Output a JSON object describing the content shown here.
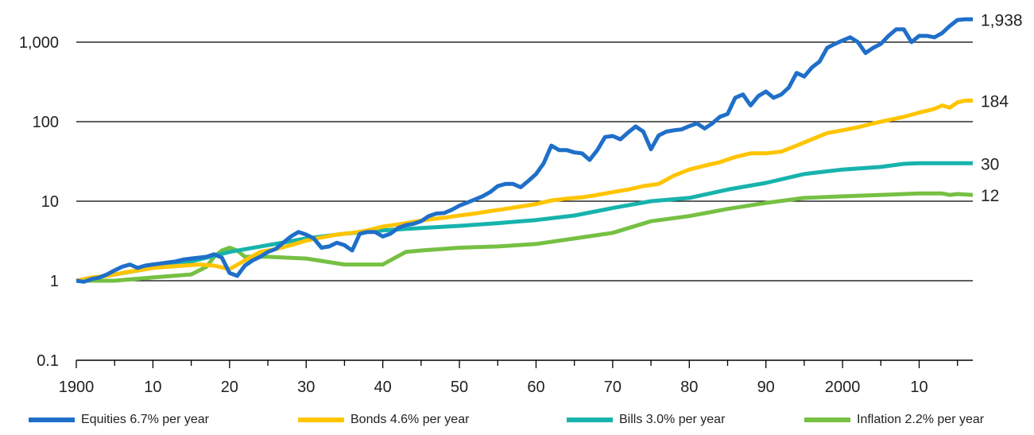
{
  "chart_data": {
    "type": "line",
    "y_scale": "log",
    "ylim": [
      0.1,
      2000
    ],
    "y_ticks": [
      0.1,
      1,
      10,
      100,
      1000
    ],
    "y_tick_labels": [
      "0.1",
      "1",
      "10",
      "100",
      "1,000"
    ],
    "xlim": [
      1900,
      2017
    ],
    "x_ticks": [
      1900,
      1910,
      1920,
      1930,
      1940,
      1950,
      1960,
      1970,
      1980,
      1990,
      2000,
      2010
    ],
    "x_tick_labels": [
      "1900",
      "10",
      "20",
      "30",
      "40",
      "50",
      "60",
      "70",
      "80",
      "90",
      "2000",
      "10"
    ],
    "grid": "horizontal",
    "legend_position": "bottom",
    "end_labels": [
      "1,938",
      "184",
      "30",
      "12"
    ],
    "series": [
      {
        "name": "Equities",
        "legend": "Equities  6.7% per year",
        "color": "#1f6fc9",
        "points": [
          [
            1900,
            1.0
          ],
          [
            1901,
            0.97
          ],
          [
            1902,
            1.05
          ],
          [
            1903,
            1.1
          ],
          [
            1904,
            1.2
          ],
          [
            1905,
            1.35
          ],
          [
            1906,
            1.5
          ],
          [
            1907,
            1.6
          ],
          [
            1908,
            1.45
          ],
          [
            1909,
            1.55
          ],
          [
            1910,
            1.6
          ],
          [
            1911,
            1.65
          ],
          [
            1912,
            1.7
          ],
          [
            1913,
            1.75
          ],
          [
            1914,
            1.85
          ],
          [
            1915,
            1.9
          ],
          [
            1916,
            1.95
          ],
          [
            1917,
            2.0
          ],
          [
            1918,
            2.15
          ],
          [
            1919,
            1.95
          ],
          [
            1920,
            1.25
          ],
          [
            1921,
            1.15
          ],
          [
            1922,
            1.55
          ],
          [
            1923,
            1.8
          ],
          [
            1924,
            2.0
          ],
          [
            1925,
            2.3
          ],
          [
            1926,
            2.5
          ],
          [
            1927,
            3.0
          ],
          [
            1928,
            3.6
          ],
          [
            1929,
            4.1
          ],
          [
            1930,
            3.8
          ],
          [
            1931,
            3.4
          ],
          [
            1932,
            2.6
          ],
          [
            1933,
            2.7
          ],
          [
            1934,
            3.0
          ],
          [
            1935,
            2.8
          ],
          [
            1936,
            2.4
          ],
          [
            1937,
            3.9
          ],
          [
            1938,
            4.1
          ],
          [
            1939,
            4.1
          ],
          [
            1940,
            3.6
          ],
          [
            1941,
            3.9
          ],
          [
            1942,
            4.6
          ],
          [
            1943,
            5.0
          ],
          [
            1944,
            5.2
          ],
          [
            1945,
            5.6
          ],
          [
            1946,
            6.5
          ],
          [
            1947,
            7.0
          ],
          [
            1948,
            7.1
          ],
          [
            1949,
            7.8
          ],
          [
            1950,
            8.8
          ],
          [
            1951,
            9.6
          ],
          [
            1952,
            10.5
          ],
          [
            1953,
            11.5
          ],
          [
            1954,
            13.0
          ],
          [
            1955,
            15.5
          ],
          [
            1956,
            16.5
          ],
          [
            1957,
            16.5
          ],
          [
            1958,
            15.0
          ],
          [
            1959,
            18.0
          ],
          [
            1960,
            22.0
          ],
          [
            1961,
            30.0
          ],
          [
            1962,
            50.0
          ],
          [
            1963,
            44.0
          ],
          [
            1964,
            44.0
          ],
          [
            1965,
            41.0
          ],
          [
            1966,
            40.0
          ],
          [
            1967,
            33.0
          ],
          [
            1968,
            44.0
          ],
          [
            1969,
            64.0
          ],
          [
            1970,
            66.0
          ],
          [
            1971,
            60.0
          ],
          [
            1972,
            73.0
          ],
          [
            1973,
            87.0
          ],
          [
            1974,
            75.0
          ],
          [
            1975,
            45.0
          ],
          [
            1976,
            67.0
          ],
          [
            1977,
            75.0
          ],
          [
            1978,
            78.0
          ],
          [
            1979,
            80.0
          ],
          [
            1980,
            88.0
          ],
          [
            1981,
            95.0
          ],
          [
            1982,
            82.0
          ],
          [
            1983,
            95.0
          ],
          [
            1984,
            115.0
          ],
          [
            1985,
            125.0
          ],
          [
            1986,
            200.0
          ],
          [
            1987,
            220.0
          ],
          [
            1988,
            160.0
          ],
          [
            1989,
            210.0
          ],
          [
            1990,
            240.0
          ],
          [
            1991,
            200.0
          ],
          [
            1992,
            220.0
          ],
          [
            1993,
            270.0
          ],
          [
            1994,
            410.0
          ],
          [
            1995,
            370.0
          ],
          [
            1996,
            480.0
          ],
          [
            1997,
            570.0
          ],
          [
            1998,
            850.0
          ],
          [
            1999,
            950.0
          ],
          [
            2000,
            1050.0
          ],
          [
            2001,
            1150.0
          ],
          [
            2002,
            1000.0
          ],
          [
            2003,
            730.0
          ],
          [
            2004,
            850.0
          ],
          [
            2005,
            950.0
          ],
          [
            2006,
            1200.0
          ],
          [
            2007,
            1450.0
          ],
          [
            2008,
            1450.0
          ],
          [
            2009,
            1000.0
          ],
          [
            2010,
            1200.0
          ],
          [
            2011,
            1200.0
          ],
          [
            2012,
            1150.0
          ],
          [
            2013,
            1300.0
          ],
          [
            2014,
            1600.0
          ],
          [
            2015,
            1900.0
          ],
          [
            2016,
            1938.0
          ],
          [
            2017,
            1938.0
          ]
        ]
      },
      {
        "name": "Bonds",
        "legend": "Bonds  4.6% per year",
        "color": "#ffc400",
        "points": [
          [
            1900,
            1.0
          ],
          [
            1902,
            1.1
          ],
          [
            1904,
            1.15
          ],
          [
            1906,
            1.25
          ],
          [
            1908,
            1.35
          ],
          [
            1910,
            1.45
          ],
          [
            1912,
            1.5
          ],
          [
            1914,
            1.55
          ],
          [
            1916,
            1.6
          ],
          [
            1918,
            1.55
          ],
          [
            1920,
            1.4
          ],
          [
            1922,
            1.8
          ],
          [
            1924,
            2.3
          ],
          [
            1926,
            2.5
          ],
          [
            1928,
            2.8
          ],
          [
            1930,
            3.2
          ],
          [
            1932,
            3.5
          ],
          [
            1934,
            3.8
          ],
          [
            1936,
            4.0
          ],
          [
            1938,
            4.3
          ],
          [
            1940,
            4.8
          ],
          [
            1942,
            5.1
          ],
          [
            1944,
            5.5
          ],
          [
            1946,
            5.9
          ],
          [
            1948,
            6.2
          ],
          [
            1950,
            6.6
          ],
          [
            1952,
            7.0
          ],
          [
            1954,
            7.5
          ],
          [
            1956,
            8.0
          ],
          [
            1958,
            8.6
          ],
          [
            1960,
            9.2
          ],
          [
            1962,
            10.2
          ],
          [
            1964,
            10.8
          ],
          [
            1966,
            11.2
          ],
          [
            1968,
            12.0
          ],
          [
            1970,
            13.0
          ],
          [
            1972,
            14.0
          ],
          [
            1974,
            15.5
          ],
          [
            1976,
            16.5
          ],
          [
            1978,
            21.0
          ],
          [
            1980,
            25.0
          ],
          [
            1982,
            28.0
          ],
          [
            1984,
            31.0
          ],
          [
            1986,
            36.0
          ],
          [
            1988,
            40.0
          ],
          [
            1990,
            40.0
          ],
          [
            1992,
            42.0
          ],
          [
            1994,
            50.0
          ],
          [
            1996,
            60.0
          ],
          [
            1998,
            72.0
          ],
          [
            2000,
            78.0
          ],
          [
            2002,
            85.0
          ],
          [
            2004,
            95.0
          ],
          [
            2006,
            105.0
          ],
          [
            2008,
            115.0
          ],
          [
            2010,
            130.0
          ],
          [
            2012,
            145.0
          ],
          [
            2013,
            160.0
          ],
          [
            2014,
            150.0
          ],
          [
            2015,
            175.0
          ],
          [
            2016,
            184.0
          ],
          [
            2017,
            184.0
          ]
        ]
      },
      {
        "name": "Bills",
        "legend": "Bills  3.0% per year",
        "color": "#17b3ad",
        "points": [
          [
            1900,
            1.0
          ],
          [
            1905,
            1.2
          ],
          [
            1910,
            1.45
          ],
          [
            1915,
            1.75
          ],
          [
            1920,
            2.3
          ],
          [
            1925,
            2.8
          ],
          [
            1930,
            3.4
          ],
          [
            1935,
            3.9
          ],
          [
            1940,
            4.3
          ],
          [
            1945,
            4.6
          ],
          [
            1950,
            4.9
          ],
          [
            1955,
            5.3
          ],
          [
            1960,
            5.8
          ],
          [
            1965,
            6.6
          ],
          [
            1970,
            8.2
          ],
          [
            1975,
            10.0
          ],
          [
            1980,
            11.0
          ],
          [
            1985,
            14.0
          ],
          [
            1990,
            17.0
          ],
          [
            1995,
            22.0
          ],
          [
            2000,
            25.0
          ],
          [
            2005,
            27.0
          ],
          [
            2008,
            29.5
          ],
          [
            2010,
            30.0
          ],
          [
            2017,
            30.0
          ]
        ]
      },
      {
        "name": "Inflation",
        "legend": "Inflation  2.2% per year",
        "color": "#76c043",
        "points": [
          [
            1900,
            1.0
          ],
          [
            1905,
            1.0
          ],
          [
            1910,
            1.1
          ],
          [
            1915,
            1.2
          ],
          [
            1917,
            1.5
          ],
          [
            1918,
            2.0
          ],
          [
            1919,
            2.4
          ],
          [
            1920,
            2.6
          ],
          [
            1921,
            2.4
          ],
          [
            1922,
            2.0
          ],
          [
            1925,
            2.0
          ],
          [
            1930,
            1.9
          ],
          [
            1935,
            1.6
          ],
          [
            1940,
            1.6
          ],
          [
            1943,
            2.3
          ],
          [
            1945,
            2.4
          ],
          [
            1950,
            2.6
          ],
          [
            1955,
            2.7
          ],
          [
            1960,
            2.9
          ],
          [
            1965,
            3.4
          ],
          [
            1970,
            4.0
          ],
          [
            1975,
            5.6
          ],
          [
            1980,
            6.5
          ],
          [
            1985,
            8.0
          ],
          [
            1990,
            9.5
          ],
          [
            1995,
            11.0
          ],
          [
            2000,
            11.5
          ],
          [
            2005,
            12.0
          ],
          [
            2010,
            12.5
          ],
          [
            2013,
            12.5
          ],
          [
            2014,
            12.0
          ],
          [
            2015,
            12.3
          ],
          [
            2017,
            12.0
          ]
        ]
      }
    ]
  }
}
